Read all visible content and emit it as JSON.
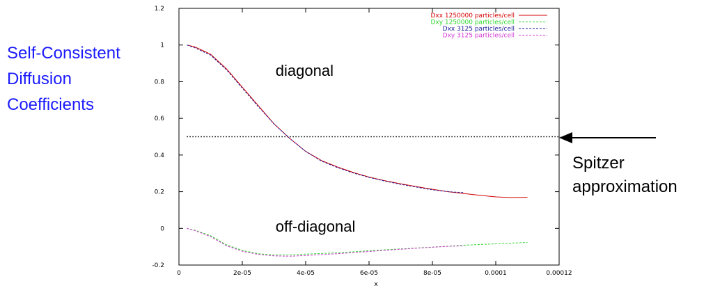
{
  "side_title": [
    "Self-Consistent",
    "Diffusion",
    "Coefficients"
  ],
  "spitzer_label": [
    "Spitzer",
    "approximation"
  ],
  "colors": {
    "title": "#1a1aff",
    "dxx_big": "#d40000",
    "dxy_big": "#2bd62b",
    "dxx_small": "#1c1c9c",
    "dxy_small": "#d438d4"
  },
  "chart_data": {
    "type": "line",
    "title": "",
    "xlabel": "x",
    "ylabel": "",
    "xlim": [
      0,
      0.00012
    ],
    "ylim": [
      -0.2,
      1.2
    ],
    "x_ticks": [
      0,
      2e-05,
      4e-05,
      6e-05,
      8e-05,
      0.0001,
      0.00012
    ],
    "x_tick_labels": [
      "0",
      "2e-05",
      "4e-05",
      "6e-05",
      "8e-05",
      "0.0001",
      "0.00012"
    ],
    "y_ticks": [
      -0.2,
      0,
      0.2,
      0.4,
      0.6,
      0.8,
      1,
      1.2
    ],
    "y_tick_labels": [
      "-0.2",
      "0",
      "0.2",
      "0.4",
      "0.6",
      "0.8",
      "1",
      "1.2"
    ],
    "legend_position": "top-right",
    "annotations": [
      {
        "text": "diagonal",
        "x": 3.05e-05,
        "y": 0.86
      },
      {
        "text": "off-diagonal",
        "x": 3.05e-05,
        "y": 0.01
      }
    ],
    "reference_line": {
      "y": 0.5,
      "x_range": [
        2.5e-06,
        0.000123
      ],
      "style": "dotted",
      "note": "Spitzer approximation"
    },
    "series": [
      {
        "name": "Dxx 1250000 particles/cell",
        "style": "solid",
        "x": [
          2.5e-06,
          5e-06,
          1e-05,
          1.5e-05,
          2e-05,
          2.5e-05,
          3e-05,
          3.5e-05,
          4e-05,
          4.5e-05,
          5e-05,
          5.5e-05,
          6e-05,
          6.5e-05,
          7e-05,
          7.5e-05,
          8e-05,
          8.5e-05,
          9e-05,
          9.5e-05,
          0.0001,
          0.000105,
          0.00011
        ],
        "y": [
          1.0,
          0.99,
          0.95,
          0.87,
          0.77,
          0.67,
          0.57,
          0.49,
          0.42,
          0.37,
          0.335,
          0.305,
          0.28,
          0.26,
          0.243,
          0.228,
          0.213,
          0.2,
          0.19,
          0.18,
          0.172,
          0.168,
          0.17
        ]
      },
      {
        "name": "Dxy 1250000 particles/cell",
        "style": "dashed",
        "x": [
          2.5e-06,
          5e-06,
          1e-05,
          1.5e-05,
          2e-05,
          2.5e-05,
          3e-05,
          3.5e-05,
          4e-05,
          4.5e-05,
          5e-05,
          5.5e-05,
          6e-05,
          6.5e-05,
          7e-05,
          7.5e-05,
          8e-05,
          8.5e-05,
          9e-05,
          9.5e-05,
          0.0001,
          0.000105,
          0.00011
        ],
        "y": [
          0.0,
          -0.01,
          -0.04,
          -0.09,
          -0.12,
          -0.138,
          -0.145,
          -0.145,
          -0.14,
          -0.137,
          -0.133,
          -0.128,
          -0.122,
          -0.117,
          -0.112,
          -0.107,
          -0.102,
          -0.097,
          -0.092,
          -0.088,
          -0.084,
          -0.08,
          -0.077
        ]
      },
      {
        "name": "Dxx 3125 particles/cell",
        "style": "dashed",
        "x": [
          2.5e-06,
          5e-06,
          1e-05,
          1.5e-05,
          2e-05,
          2.5e-05,
          3e-05,
          3.5e-05,
          4e-05,
          4.5e-05,
          5e-05,
          5.5e-05,
          6e-05,
          6.5e-05,
          7e-05,
          7.5e-05,
          8e-05,
          8.5e-05,
          9e-05
        ],
        "y": [
          1.0,
          0.985,
          0.945,
          0.865,
          0.765,
          0.665,
          0.57,
          0.49,
          0.42,
          0.367,
          0.332,
          0.302,
          0.278,
          0.258,
          0.24,
          0.225,
          0.21,
          0.2,
          0.195
        ]
      },
      {
        "name": "Dxy 3125 particles/cell",
        "style": "dashed",
        "x": [
          2.5e-06,
          5e-06,
          1e-05,
          1.5e-05,
          2e-05,
          2.5e-05,
          3e-05,
          3.5e-05,
          4e-05,
          4.5e-05,
          5e-05,
          5.5e-05,
          6e-05,
          6.5e-05,
          7e-05,
          7.5e-05,
          8e-05,
          8.5e-05,
          9e-05
        ],
        "y": [
          0.0,
          -0.012,
          -0.045,
          -0.095,
          -0.125,
          -0.142,
          -0.15,
          -0.152,
          -0.148,
          -0.143,
          -0.138,
          -0.132,
          -0.126,
          -0.12,
          -0.114,
          -0.108,
          -0.103,
          -0.098,
          -0.095
        ]
      }
    ]
  }
}
